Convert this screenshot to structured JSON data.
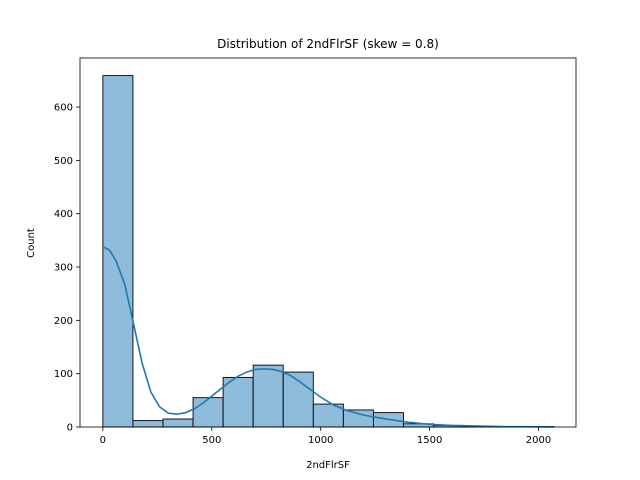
{
  "chart_data": {
    "type": "bar",
    "title": "Distribution of 2ndFlrSF (skew = 0.8)",
    "xlabel": "2ndFlrSF",
    "ylabel": "Count",
    "xlim": [
      -105,
      2172
    ],
    "ylim": [
      0,
      692
    ],
    "bin_width": 138,
    "bins": [
      {
        "start": 0,
        "end": 138,
        "count": 659
      },
      {
        "start": 138,
        "end": 276,
        "count": 12
      },
      {
        "start": 276,
        "end": 414,
        "count": 15
      },
      {
        "start": 414,
        "end": 552,
        "count": 55
      },
      {
        "start": 552,
        "end": 690,
        "count": 93
      },
      {
        "start": 690,
        "end": 828,
        "count": 116
      },
      {
        "start": 828,
        "end": 966,
        "count": 103
      },
      {
        "start": 966,
        "end": 1104,
        "count": 43
      },
      {
        "start": 1104,
        "end": 1242,
        "count": 32
      },
      {
        "start": 1242,
        "end": 1380,
        "count": 27
      },
      {
        "start": 1380,
        "end": 1518,
        "count": 6
      },
      {
        "start": 1518,
        "end": 1656,
        "count": 3
      },
      {
        "start": 1656,
        "end": 1794,
        "count": 1
      },
      {
        "start": 1794,
        "end": 1932,
        "count": 1
      },
      {
        "start": 1932,
        "end": 2070,
        "count": 1
      }
    ],
    "kde": {
      "x": [
        0,
        30,
        60,
        100,
        140,
        180,
        220,
        260,
        300,
        340,
        380,
        420,
        460,
        500,
        540,
        580,
        620,
        660,
        700,
        740,
        780,
        820,
        860,
        900,
        950,
        1000,
        1060,
        1120,
        1200,
        1300,
        1400,
        1500,
        1600,
        1700,
        1800,
        1900,
        2000,
        2070
      ],
      "y": [
        338,
        332,
        312,
        268,
        195,
        120,
        66,
        38,
        26,
        24,
        27,
        34,
        45,
        58,
        71,
        84,
        95,
        103,
        108,
        109,
        108,
        104,
        97,
        86,
        71,
        56,
        41,
        31,
        22,
        15,
        9,
        5,
        3,
        2,
        1,
        0.5,
        0.3,
        0.2
      ]
    },
    "x_ticks": [
      0,
      500,
      1000,
      1500,
      2000
    ],
    "y_ticks": [
      0,
      100,
      200,
      300,
      400,
      500,
      600
    ],
    "bar_color": "#8fbcdb",
    "bar_edge_color": "#000000",
    "kde_color": "#1f77b4",
    "grid": false,
    "legend": "none"
  }
}
